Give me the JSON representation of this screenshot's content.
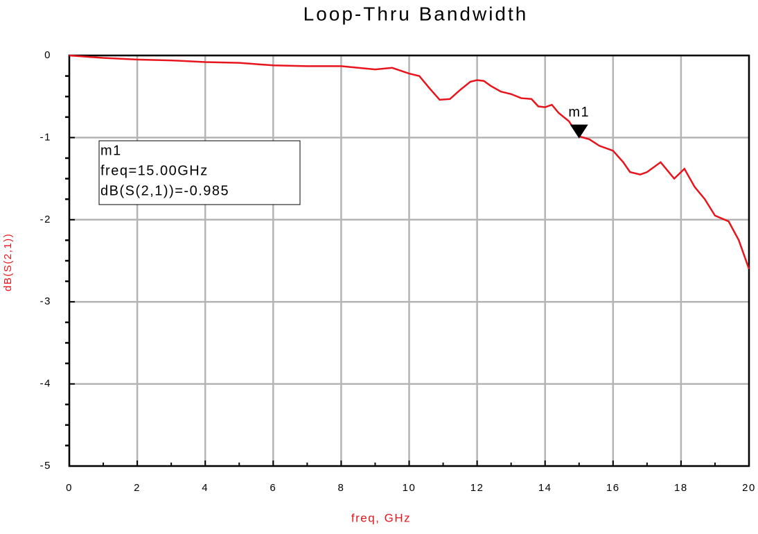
{
  "chart_data": {
    "type": "line",
    "title": "Loop-Thru Bandwidth",
    "x_label": "freq, GHz",
    "y_label": "dB(S(2,1))",
    "x": [
      0,
      1,
      2,
      3,
      4,
      5,
      6,
      7,
      8,
      8.5,
      9,
      9.5,
      10,
      10.3,
      10.6,
      10.9,
      11.2,
      11.5,
      11.8,
      12,
      12.2,
      12.4,
      12.7,
      13,
      13.3,
      13.6,
      13.8,
      14,
      14.2,
      14.4,
      14.7,
      15,
      15.3,
      15.6,
      16,
      16.3,
      16.5,
      16.8,
      17,
      17.4,
      17.8,
      18.1,
      18.4,
      18.7,
      19,
      19.4,
      19.7,
      20
    ],
    "series": [
      {
        "name": "dB(S(2,1))",
        "color": "#e8141c",
        "values": [
          0,
          -0.03,
          -0.05,
          -0.06,
          -0.08,
          -0.09,
          -0.12,
          -0.13,
          -0.13,
          -0.15,
          -0.17,
          -0.15,
          -0.22,
          -0.25,
          -0.4,
          -0.54,
          -0.53,
          -0.42,
          -0.32,
          -0.3,
          -0.31,
          -0.37,
          -0.44,
          -0.47,
          -0.52,
          -0.53,
          -0.62,
          -0.63,
          -0.6,
          -0.7,
          -0.8,
          -0.985,
          -1.02,
          -1.1,
          -1.16,
          -1.3,
          -1.42,
          -1.45,
          -1.42,
          -1.3,
          -1.5,
          -1.38,
          -1.6,
          -1.75,
          -1.95,
          -2.02,
          -2.25,
          -2.6
        ]
      }
    ],
    "xlim": [
      0,
      20
    ],
    "xticks": [
      0,
      2,
      4,
      6,
      8,
      10,
      12,
      14,
      16,
      18,
      20
    ],
    "ylim": [
      -5,
      0
    ],
    "yticks": [
      -5,
      -4,
      -3,
      -2,
      -1,
      0
    ],
    "grid": true,
    "marker": {
      "name": "m1",
      "x": 15,
      "y": -0.985,
      "lines": [
        "m1",
        "freq=15.00GHz",
        "dB(S(2,1))=-0.985"
      ]
    }
  }
}
